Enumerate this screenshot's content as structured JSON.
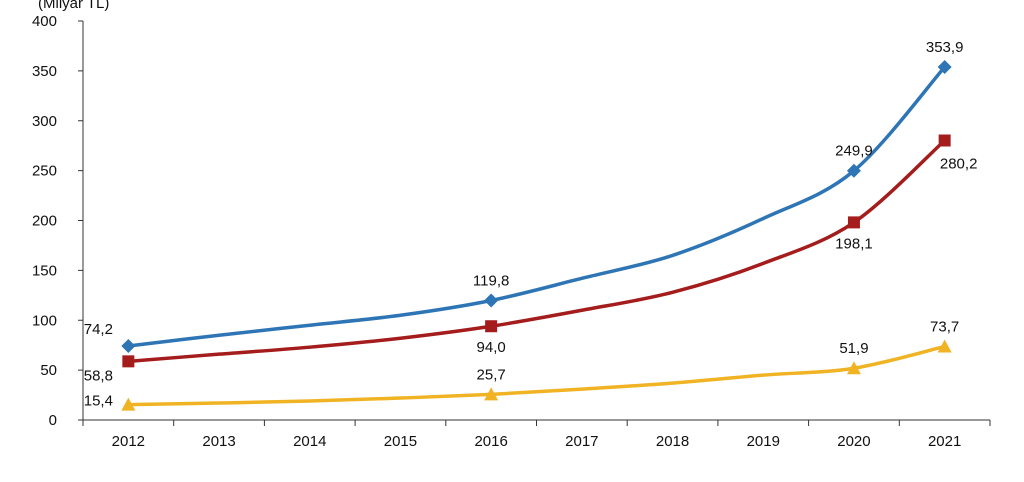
{
  "chart_data": {
    "type": "line",
    "ylabel": "(Milyar TL)",
    "ylim": [
      0,
      400
    ],
    "yticks": [
      0,
      50,
      100,
      150,
      200,
      250,
      300,
      350,
      400
    ],
    "categories": [
      "2012",
      "2013",
      "2014",
      "2015",
      "2016",
      "2017",
      "2018",
      "2019",
      "2020",
      "2021"
    ],
    "grid": false,
    "series": [
      {
        "color": "#2e75b6",
        "marker": "diamond",
        "values": [
          74.2,
          85,
          95,
          105,
          119.8,
          142,
          165,
          202,
          249.9,
          353.9
        ],
        "labels": [
          "74,2",
          "",
          "",
          "",
          "119,8",
          "",
          "",
          "",
          "249,9",
          "353,9"
        ],
        "label_pos": "above"
      },
      {
        "color": "#a51c1c",
        "marker": "square",
        "values": [
          58.8,
          66,
          73,
          82,
          94.0,
          110,
          128,
          157,
          198.1,
          280.2
        ],
        "labels": [
          "58,8",
          "",
          "",
          "",
          "94,0",
          "",
          "",
          "",
          "198,1",
          "280,2"
        ],
        "label_pos": "below"
      },
      {
        "color": "#f0b323",
        "marker": "triangle",
        "values": [
          15.4,
          17,
          19,
          22,
          25.7,
          31,
          37,
          45,
          51.9,
          73.7
        ],
        "labels": [
          "15,4",
          "",
          "",
          "",
          "25,7",
          "",
          "",
          "",
          "51,9",
          "73,7"
        ],
        "label_pos": "above"
      }
    ]
  }
}
